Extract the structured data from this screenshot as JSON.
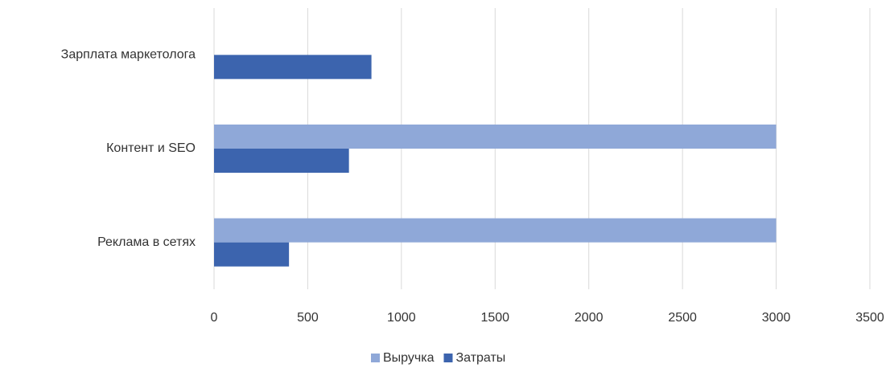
{
  "chart_data": {
    "type": "barh",
    "categories": [
      "Реклама в сетях",
      "Контент и SEO",
      "Зарплата маркетолога"
    ],
    "series": [
      {
        "name": "Выручка",
        "color": "#8fa8d8",
        "values": [
          3000,
          3000,
          null
        ]
      },
      {
        "name": "Затраты",
        "color": "#3c64ae",
        "values": [
          400,
          720,
          840
        ]
      }
    ],
    "xlim": [
      0,
      3500
    ],
    "xticks": [
      0,
      500,
      1000,
      1500,
      2000,
      2500,
      3000,
      3500
    ],
    "grid": true,
    "legend": "bottom"
  }
}
